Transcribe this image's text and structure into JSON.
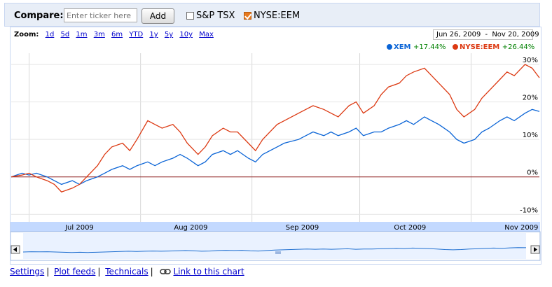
{
  "compare": {
    "label": "Compare:",
    "input_placeholder": "Enter ticker here",
    "add_label": "Add",
    "checkboxes": [
      {
        "label": "S&P TSX",
        "checked": false
      },
      {
        "label": "NYSE:EEM",
        "checked": true
      }
    ]
  },
  "zoom": {
    "label": "Zoom:",
    "options": [
      "1d",
      "5d",
      "1m",
      "3m",
      "6m",
      "YTD",
      "1y",
      "5y",
      "10y",
      "Max"
    ]
  },
  "date_range": {
    "start": "Jun 26, 2009",
    "separator": "-",
    "end": "Nov 20, 2009"
  },
  "legend": [
    {
      "name": "XEM",
      "change": "+17.44%",
      "color": "#0a64d6"
    },
    {
      "name": "NYSE:EEM",
      "change": "+26.44%",
      "color": "#dc3912"
    }
  ],
  "chart_data": {
    "type": "line",
    "y_ticks": [
      "30%",
      "20%",
      "10%",
      "0%",
      "-10%"
    ],
    "y_tick_values": [
      30,
      20,
      10,
      0,
      -10
    ],
    "ylim": [
      -12,
      33
    ],
    "x_range": [
      "2009-06-26",
      "2009-11-20"
    ],
    "x_labels": [
      {
        "label": "Jul 2009",
        "date": "2009-07-15"
      },
      {
        "label": "Aug 2009",
        "date": "2009-08-15"
      },
      {
        "label": "Sep 2009",
        "date": "2009-09-15"
      },
      {
        "label": "Oct 2009",
        "date": "2009-10-15"
      },
      {
        "label": "Nov 2009",
        "date": "2009-11-15"
      }
    ],
    "series": [
      {
        "name": "XEM",
        "color": "#0a64d6",
        "points": [
          [
            "2009-06-26",
            0
          ],
          [
            "2009-06-29",
            1
          ],
          [
            "2009-07-01",
            0.5
          ],
          [
            "2009-07-03",
            1
          ],
          [
            "2009-07-06",
            0
          ],
          [
            "2009-07-08",
            -1
          ],
          [
            "2009-07-10",
            -2
          ],
          [
            "2009-07-13",
            -1
          ],
          [
            "2009-07-15",
            -2
          ],
          [
            "2009-07-17",
            -1
          ],
          [
            "2009-07-20",
            0
          ],
          [
            "2009-07-22",
            1
          ],
          [
            "2009-07-24",
            2
          ],
          [
            "2009-07-27",
            3
          ],
          [
            "2009-07-29",
            2
          ],
          [
            "2009-07-31",
            3
          ],
          [
            "2009-08-03",
            4
          ],
          [
            "2009-08-05",
            3
          ],
          [
            "2009-08-07",
            4
          ],
          [
            "2009-08-10",
            5
          ],
          [
            "2009-08-12",
            6
          ],
          [
            "2009-08-14",
            5
          ],
          [
            "2009-08-17",
            3
          ],
          [
            "2009-08-19",
            4
          ],
          [
            "2009-08-21",
            6
          ],
          [
            "2009-08-24",
            7
          ],
          [
            "2009-08-26",
            6
          ],
          [
            "2009-08-28",
            7
          ],
          [
            "2009-08-31",
            5
          ],
          [
            "2009-09-02",
            4
          ],
          [
            "2009-09-04",
            6
          ],
          [
            "2009-09-08",
            8
          ],
          [
            "2009-09-10",
            9
          ],
          [
            "2009-09-14",
            10
          ],
          [
            "2009-09-16",
            11
          ],
          [
            "2009-09-18",
            12
          ],
          [
            "2009-09-21",
            11
          ],
          [
            "2009-09-23",
            12
          ],
          [
            "2009-09-25",
            11
          ],
          [
            "2009-09-28",
            12
          ],
          [
            "2009-09-30",
            13
          ],
          [
            "2009-10-02",
            11
          ],
          [
            "2009-10-05",
            12
          ],
          [
            "2009-10-07",
            12
          ],
          [
            "2009-10-09",
            13
          ],
          [
            "2009-10-12",
            14
          ],
          [
            "2009-10-14",
            15
          ],
          [
            "2009-10-16",
            14
          ],
          [
            "2009-10-19",
            16
          ],
          [
            "2009-10-21",
            15
          ],
          [
            "2009-10-23",
            14
          ],
          [
            "2009-10-26",
            12
          ],
          [
            "2009-10-28",
            10
          ],
          [
            "2009-10-30",
            9
          ],
          [
            "2009-11-02",
            10
          ],
          [
            "2009-11-04",
            12
          ],
          [
            "2009-11-06",
            13
          ],
          [
            "2009-11-09",
            15
          ],
          [
            "2009-11-11",
            16
          ],
          [
            "2009-11-13",
            15
          ],
          [
            "2009-11-16",
            17
          ],
          [
            "2009-11-18",
            18
          ],
          [
            "2009-11-20",
            17.44
          ]
        ]
      },
      {
        "name": "NYSE:EEM",
        "color": "#dc3912",
        "points": [
          [
            "2009-06-26",
            0
          ],
          [
            "2009-06-29",
            0.5
          ],
          [
            "2009-07-01",
            1
          ],
          [
            "2009-07-03",
            0
          ],
          [
            "2009-07-06",
            -1
          ],
          [
            "2009-07-08",
            -2
          ],
          [
            "2009-07-10",
            -4
          ],
          [
            "2009-07-13",
            -3
          ],
          [
            "2009-07-15",
            -2
          ],
          [
            "2009-07-17",
            0
          ],
          [
            "2009-07-20",
            3
          ],
          [
            "2009-07-22",
            6
          ],
          [
            "2009-07-24",
            8
          ],
          [
            "2009-07-27",
            9
          ],
          [
            "2009-07-29",
            7
          ],
          [
            "2009-07-31",
            10
          ],
          [
            "2009-08-03",
            15
          ],
          [
            "2009-08-05",
            14
          ],
          [
            "2009-08-07",
            13
          ],
          [
            "2009-08-10",
            14
          ],
          [
            "2009-08-12",
            12
          ],
          [
            "2009-08-14",
            9
          ],
          [
            "2009-08-17",
            6
          ],
          [
            "2009-08-19",
            8
          ],
          [
            "2009-08-21",
            11
          ],
          [
            "2009-08-24",
            13
          ],
          [
            "2009-08-26",
            12
          ],
          [
            "2009-08-28",
            12
          ],
          [
            "2009-08-31",
            9
          ],
          [
            "2009-09-02",
            7
          ],
          [
            "2009-09-04",
            10
          ],
          [
            "2009-09-08",
            14
          ],
          [
            "2009-09-10",
            15
          ],
          [
            "2009-09-14",
            17
          ],
          [
            "2009-09-16",
            18
          ],
          [
            "2009-09-18",
            19
          ],
          [
            "2009-09-21",
            18
          ],
          [
            "2009-09-23",
            17
          ],
          [
            "2009-09-25",
            16
          ],
          [
            "2009-09-28",
            19
          ],
          [
            "2009-09-30",
            20
          ],
          [
            "2009-10-02",
            17
          ],
          [
            "2009-10-05",
            19
          ],
          [
            "2009-10-07",
            22
          ],
          [
            "2009-10-09",
            24
          ],
          [
            "2009-10-12",
            25
          ],
          [
            "2009-10-14",
            27
          ],
          [
            "2009-10-16",
            28
          ],
          [
            "2009-10-19",
            29
          ],
          [
            "2009-10-21",
            27
          ],
          [
            "2009-10-23",
            25
          ],
          [
            "2009-10-26",
            22
          ],
          [
            "2009-10-28",
            18
          ],
          [
            "2009-10-30",
            16
          ],
          [
            "2009-11-02",
            18
          ],
          [
            "2009-11-04",
            21
          ],
          [
            "2009-11-06",
            23
          ],
          [
            "2009-11-09",
            26
          ],
          [
            "2009-11-11",
            28
          ],
          [
            "2009-11-13",
            27
          ],
          [
            "2009-11-16",
            30
          ],
          [
            "2009-11-18",
            29
          ],
          [
            "2009-11-20",
            26.44
          ]
        ]
      }
    ],
    "zero_line_color": "#8b1a1a",
    "navigator_color": "#1f6fd0"
  },
  "footer": {
    "links": [
      "Settings",
      "Plot feeds",
      "Technicals"
    ],
    "link_chart": "Link to this chart"
  }
}
